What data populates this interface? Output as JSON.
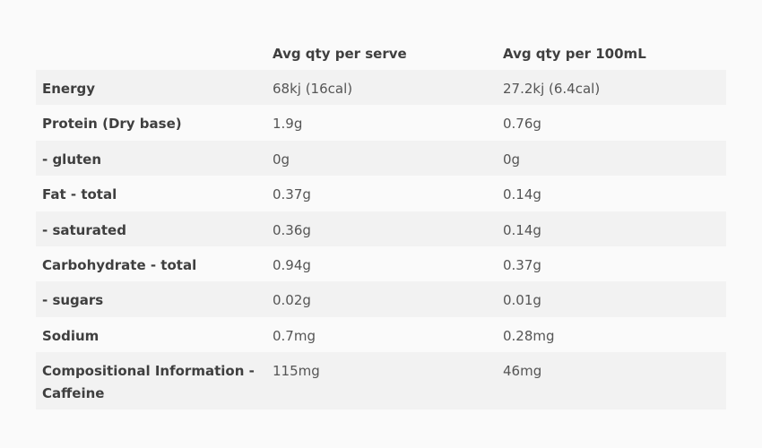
{
  "table": {
    "headers": [
      "",
      "Avg qty per serve",
      "Avg qty per 100mL"
    ],
    "rows": [
      {
        "label": "Energy",
        "per_serve": "68kj (16cal)",
        "per_100ml": "27.2kj (6.4cal)"
      },
      {
        "label": "Protein (Dry base)",
        "per_serve": "1.9g",
        "per_100ml": "0.76g"
      },
      {
        "label": "- gluten",
        "per_serve": "0g",
        "per_100ml": "0g"
      },
      {
        "label": "Fat - total",
        "per_serve": "0.37g",
        "per_100ml": "0.14g"
      },
      {
        "label": "- saturated",
        "per_serve": "0.36g",
        "per_100ml": "0.14g"
      },
      {
        "label": "Carbohydrate - total",
        "per_serve": "0.94g",
        "per_100ml": "0.37g"
      },
      {
        "label": "- sugars",
        "per_serve": "0.02g",
        "per_100ml": "0.01g"
      },
      {
        "label": "Sodium",
        "per_serve": "0.7mg",
        "per_100ml": "0.28mg"
      },
      {
        "label": "Compositional Information - Caffeine",
        "per_serve": "115mg",
        "per_100ml": "46mg"
      }
    ]
  },
  "colors": {
    "page_background": "#fafafa",
    "row_shade": "#f2f2f2",
    "label_text": "#3f3f3f",
    "value_text": "#555555"
  }
}
